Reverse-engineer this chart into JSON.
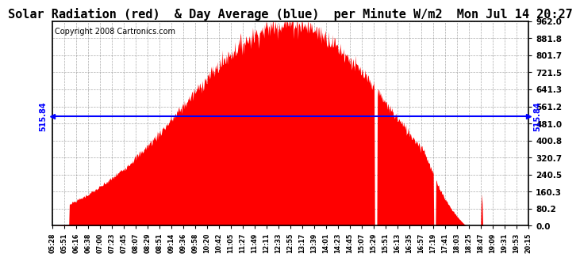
{
  "title": "Solar Radiation (red)  & Day Average (blue)  per Minute W/m2  Mon Jul 14 20:27",
  "copyright": "Copyright 2008 Cartronics.com",
  "avg_value": 515.84,
  "ylim": [
    0.0,
    962.0
  ],
  "yticks": [
    0.0,
    80.2,
    160.3,
    240.5,
    320.7,
    400.8,
    481.0,
    561.2,
    641.3,
    721.5,
    801.7,
    881.8,
    962.0
  ],
  "background_color": "#ffffff",
  "fill_color": "#ff0000",
  "avg_line_color": "#0000ff",
  "grid_color": "#888888",
  "title_fontsize": 11,
  "copyright_fontsize": 7,
  "tick_labels": [
    "05:28",
    "05:51",
    "06:16",
    "06:38",
    "07:00",
    "07:23",
    "07:45",
    "08:07",
    "08:29",
    "08:51",
    "09:14",
    "09:36",
    "09:58",
    "10:20",
    "10:42",
    "11:05",
    "11:27",
    "11:49",
    "12:11",
    "12:33",
    "12:55",
    "13:17",
    "13:39",
    "14:01",
    "14:23",
    "14:45",
    "15:07",
    "15:29",
    "15:51",
    "16:13",
    "16:35",
    "16:57",
    "17:19",
    "17:41",
    "18:03",
    "18:25",
    "18:47",
    "19:09",
    "19:31",
    "19:53",
    "20:15"
  ]
}
